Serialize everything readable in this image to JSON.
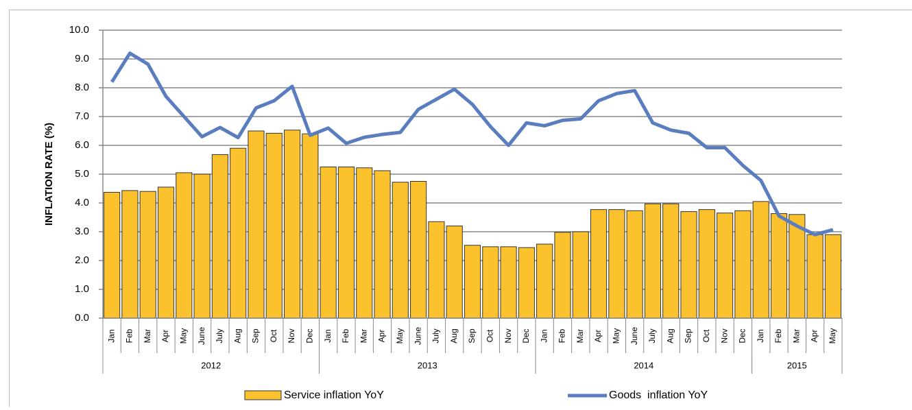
{
  "chart_data": {
    "type": "bar-line",
    "y_axis_label": "INFLATION RATE (%)",
    "categories": [
      "Jan",
      "Feb",
      "Mar",
      "Apr",
      "May",
      "June",
      "July",
      "Aug",
      "Sep",
      "Oct",
      "Nov",
      "Dec",
      "Jan",
      "Feb",
      "Mar",
      "Apr",
      "May",
      "June",
      "July",
      "Aug",
      "Sep",
      "Oct",
      "Nov",
      "Dec",
      "Jan",
      "Feb",
      "Mar",
      "Apr",
      "May",
      "June",
      "July",
      "Aug",
      "Sep",
      "Oct",
      "Nov",
      "Dec",
      "Jan",
      "Feb",
      "Mar",
      "Apr",
      "May"
    ],
    "x_groups": [
      {
        "label": "2012",
        "span": 12
      },
      {
        "label": "2013",
        "span": 12
      },
      {
        "label": "2014",
        "span": 12
      },
      {
        "label": "2015",
        "span": 5
      }
    ],
    "series": [
      {
        "name": "Service inflation YoY",
        "type": "bar",
        "color": "#fcc22d",
        "values": [
          4.37,
          4.43,
          4.4,
          4.55,
          5.05,
          5.0,
          5.68,
          5.9,
          6.5,
          6.42,
          6.53,
          6.4,
          5.25,
          5.25,
          5.22,
          5.12,
          4.72,
          4.75,
          3.35,
          3.2,
          2.53,
          2.48,
          2.48,
          2.45,
          2.57,
          2.98,
          3.0,
          3.77,
          3.77,
          3.73,
          3.97,
          3.97,
          3.7,
          3.77,
          3.65,
          3.73,
          4.05,
          3.63,
          3.6,
          2.9,
          2.9
        ]
      },
      {
        "name": "Goods  inflation YoY",
        "type": "line",
        "color": "#5a7dc0",
        "values": [
          8.2,
          9.2,
          8.82,
          7.7,
          7.0,
          6.3,
          6.62,
          6.27,
          7.3,
          7.55,
          8.05,
          6.35,
          6.6,
          6.07,
          6.28,
          6.38,
          6.45,
          7.25,
          7.6,
          7.95,
          7.42,
          6.65,
          6.0,
          6.78,
          6.68,
          6.87,
          6.92,
          7.55,
          7.8,
          7.9,
          6.78,
          6.53,
          6.42,
          5.92,
          5.92,
          5.3,
          4.78,
          3.55,
          3.2,
          2.9,
          3.07
        ]
      }
    ],
    "ylim": [
      0,
      10
    ],
    "yticks": [
      {
        "value": 0,
        "label": "0.0"
      },
      {
        "value": 1,
        "label": "1.0"
      },
      {
        "value": 2,
        "label": "2.0"
      },
      {
        "value": 3,
        "label": "3.0"
      },
      {
        "value": 4,
        "label": "4.0"
      },
      {
        "value": 5,
        "label": "5.0"
      },
      {
        "value": 6,
        "label": "6.0"
      },
      {
        "value": 7,
        "label": "7.0"
      },
      {
        "value": 8,
        "label": "8.0"
      },
      {
        "value": 9,
        "label": "9.0"
      },
      {
        "value": 10,
        "label": "10.0"
      }
    ],
    "grid": true,
    "legend": "bottom"
  }
}
